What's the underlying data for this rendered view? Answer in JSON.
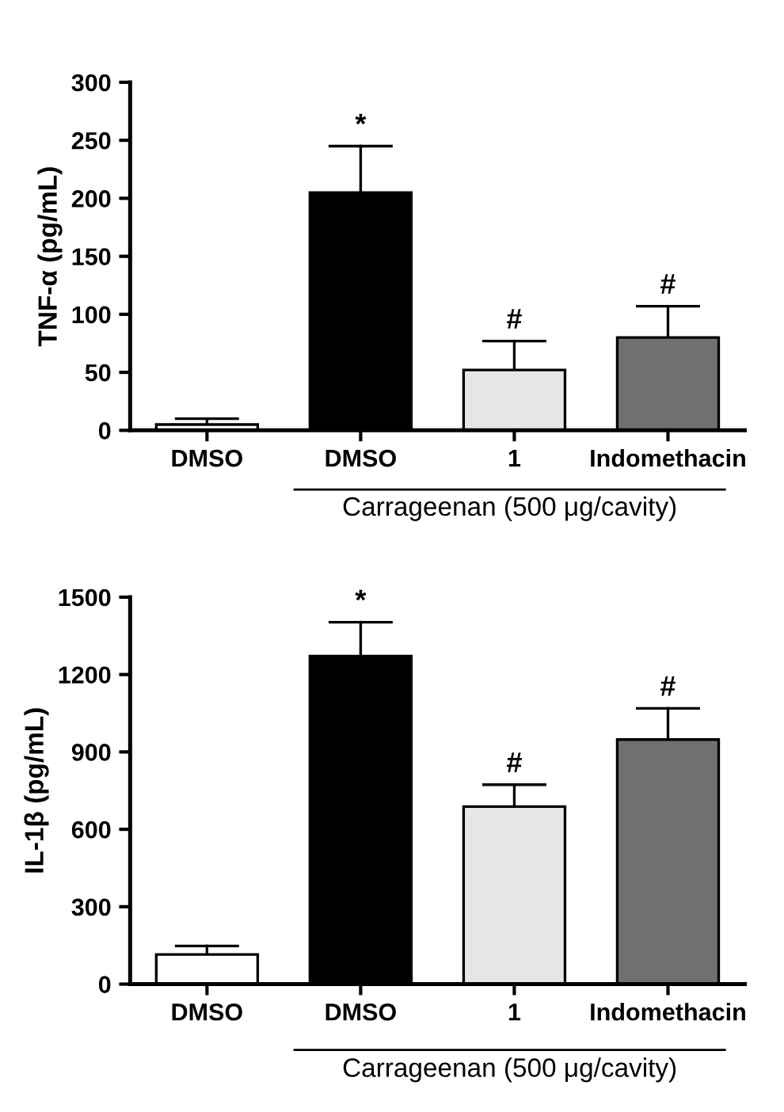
{
  "chart_data": [
    {
      "type": "bar",
      "categories": [
        "DMSO",
        "DMSO",
        "1",
        "Indomethacin"
      ],
      "values": [
        5,
        205,
        52,
        80
      ],
      "errors": [
        5,
        40,
        25,
        27
      ],
      "colors": [
        "#ffffff",
        "#000000",
        "#e6e6e6",
        "#707070"
      ],
      "ylabel": "TNF-α (pg/mL)",
      "xlabel": "Carrageenan (500 μg/cavity)",
      "ylim": [
        0,
        300
      ],
      "yticks": [
        0,
        50,
        100,
        150,
        200,
        250,
        300
      ],
      "grid": false,
      "annotations": [
        "*",
        {
          "text": "#",
          "x": "1",
          "y": 77
        },
        {
          "text": "#",
          "x": "Indomethacin",
          "y": 107
        }
      ]
    },
    {
      "type": "bar",
      "categories": [
        "DMSO",
        "DMSO",
        "1",
        "Indomethacin"
      ],
      "values": [
        115,
        1271,
        688,
        948
      ],
      "errors": [
        33,
        132,
        85,
        121
      ],
      "colors": [
        "#ffffff",
        "#000000",
        "#e6e6e6",
        "#707070"
      ],
      "ylabel": "IL-1β (pg/mL)",
      "xlabel": "Carrageenan (500 μg/cavity)",
      "ylim": [
        0,
        1500
      ],
      "yticks": [
        0,
        300,
        600,
        900,
        1200,
        1500
      ],
      "grid": false,
      "annotations": [
        "*",
        {
          "text": "#",
          "x": "1",
          "y": 773
        },
        {
          "text": "#",
          "x": "Indomethacin",
          "y": 1069
        }
      ]
    }
  ]
}
